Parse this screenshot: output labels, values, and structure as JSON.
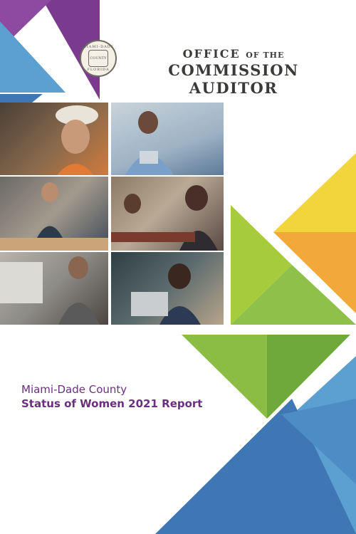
{
  "header": {
    "office_prefix": "OFFICE",
    "office_connector": "OF THE",
    "office_name": "COMMISSION AUDITOR"
  },
  "seal": {
    "ring_text": "MIAMI-DADE",
    "center_text": "COUNTY",
    "bottom_text": "FLORIDA"
  },
  "cover": {
    "title_line1": "Miami-Dade County",
    "title_line2": "Status of Women 2021 Report"
  },
  "colors": {
    "purple": "#7a3b8f",
    "violet": "#8e4aa0",
    "blue": "#3f76b4",
    "light_blue": "#5c9fd1",
    "green": "#7cb342",
    "light_green": "#a6cc3e",
    "yellow": "#f2d53c",
    "orange": "#f3a93a",
    "title_purple": "#6b2f7f"
  }
}
